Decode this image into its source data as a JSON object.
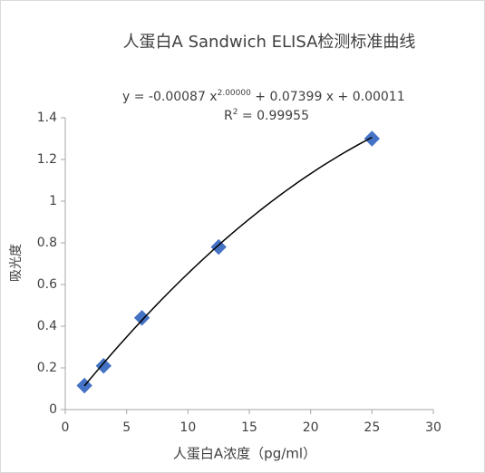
{
  "chart_data": {
    "type": "scatter",
    "title": "人蛋白A Sandwich ELISA检测标准曲线",
    "x_label": "人蛋白A浓度（pg/ml）",
    "y_label": "吸光度",
    "series": [
      {
        "name": "人蛋白A",
        "color": "#4472c4",
        "x": [
          1.5625,
          3.125,
          6.25,
          12.5,
          25
        ],
        "values": [
          0.115,
          0.21,
          0.44,
          0.78,
          1.3
        ]
      }
    ],
    "trendline": {
      "color": "#000000",
      "coefficients": [
        -0.00087,
        0.07399,
        0.00011
      ],
      "equation": "y = -0.00087 x",
      "equation_exponent": "2.00000",
      "equation_rest": " + 0.07399 x + 0.00011",
      "r_squared": "R",
      "r_squared_exponent": "2",
      "r_squared_rest": " = 0.99955"
    },
    "xlim": [
      0,
      30
    ],
    "xticks": [
      0,
      5,
      10,
      15,
      20,
      25,
      30
    ],
    "ylim": [
      0,
      1.4
    ],
    "yticks": [
      0,
      0.2,
      0.4,
      0.6,
      0.8,
      1,
      1.2,
      1.4
    ],
    "grid": false
  }
}
